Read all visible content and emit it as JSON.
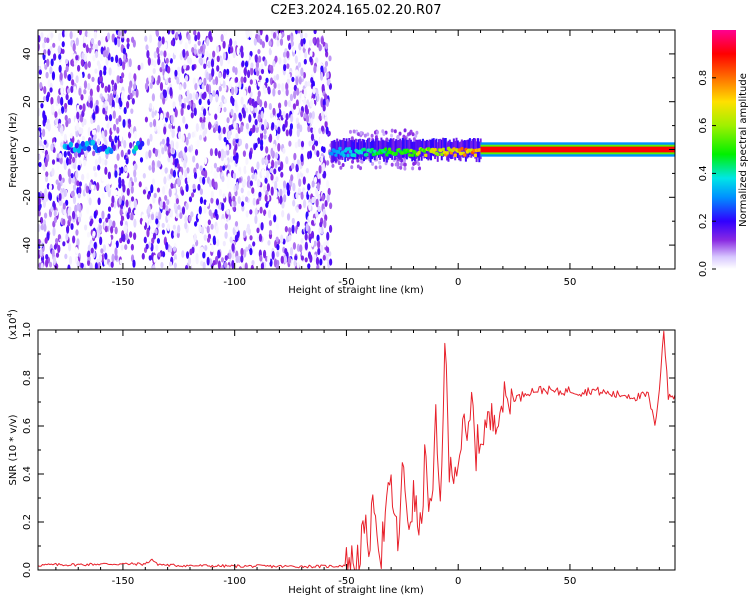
{
  "title": "C2E3.2024.165.02.20.R07",
  "chart_data": [
    {
      "type": "heatmap",
      "xlabel": "Height of straight line (km)",
      "ylabel": "Frequency (Hz)",
      "xlim": [
        -188,
        97
      ],
      "ylim": [
        -50,
        50
      ],
      "xticks": [
        -150,
        -100,
        -50,
        0,
        50
      ],
      "xtick_labels": [
        "-150",
        "-100",
        "-50",
        "0",
        "50"
      ],
      "yticks": [
        -40,
        -20,
        0,
        20,
        40
      ],
      "ytick_labels": [
        "-40",
        "-20",
        "0",
        "20",
        "40"
      ],
      "grid": false,
      "colorbar": {
        "label": "Normalized spectral amplitude",
        "range": [
          0,
          1
        ],
        "ticks": [
          0.0,
          0.2,
          0.4,
          0.6,
          0.8
        ],
        "tick_labels": [
          "0.0",
          "0.2",
          "0.4",
          "0.6",
          "0.8"
        ],
        "colormap": "rainbow (white-violet-blue-cyan-green-yellow-orange-red-magenta)"
      },
      "regions": [
        {
          "x_range": [
            -188,
            -57
          ],
          "description": "broadband noise across all frequencies, amplitude about 0.0-0.2"
        },
        {
          "x_range": [
            -144,
            -140
          ],
          "description": "low-noise gap"
        },
        {
          "x_range": [
            -176,
            -155
          ],
          "frequency": 1,
          "amplitude": 0.3
        },
        {
          "x_range": [
            -145,
            -141
          ],
          "frequency": 1,
          "amplitude": 0.35
        },
        {
          "x_range": [
            -57,
            10
          ],
          "frequency": 0,
          "amplitude_range": [
            0.3,
            0.85
          ],
          "description": "narrow spectral line, strengthening with height"
        },
        {
          "x_range": [
            10,
            97
          ],
          "frequency": 0,
          "amplitude": 0.9,
          "description": "stable strong line"
        }
      ]
    },
    {
      "type": "line",
      "xlabel": "Height of straight line (km)",
      "ylabel": "SNR (10 * v/v)",
      "y_multiplier_label": "(x10",
      "y_multiplier_exp": "4",
      "y_multiplier_close": ")",
      "xlim": [
        -188,
        97
      ],
      "ylim": [
        0,
        1.0
      ],
      "xticks": [
        -150,
        -100,
        -50,
        0,
        50
      ],
      "xtick_labels": [
        "-150",
        "-100",
        "-50",
        "0",
        "50"
      ],
      "yticks": [
        0.0,
        0.2,
        0.4,
        0.6,
        0.8,
        1.0
      ],
      "ytick_labels": [
        "0.0",
        "0.2",
        "0.4",
        "0.6",
        "0.8",
        "1.0"
      ],
      "grid": false,
      "series": [
        {
          "color": "#e8212b",
          "x": [
            -188,
            -180,
            -170,
            -160,
            -150,
            -140,
            -137,
            -135,
            -130,
            -120,
            -110,
            -100,
            -90,
            -80,
            -70,
            -60,
            -55,
            -50,
            -47,
            -45,
            -42,
            -40,
            -37,
            -35,
            -32,
            -30,
            -27,
            -25,
            -22,
            -20,
            -17,
            -15,
            -12,
            -10,
            -8,
            -6,
            -4,
            -2,
            0,
            2,
            4,
            6,
            8,
            10,
            12,
            15,
            18,
            20,
            22,
            25,
            28,
            30,
            35,
            40,
            45,
            50,
            55,
            60,
            65,
            70,
            75,
            80,
            85,
            88,
            90,
            92,
            94,
            97
          ],
          "y": [
            0.02,
            0.022,
            0.022,
            0.025,
            0.025,
            0.025,
            0.045,
            0.025,
            0.02,
            0.018,
            0.017,
            0.016,
            0.016,
            0.015,
            0.015,
            0.015,
            0.016,
            0.02,
            0.035,
            0.05,
            0.15,
            0.12,
            0.3,
            0.05,
            0.25,
            0.35,
            0.1,
            0.4,
            0.2,
            0.3,
            0.15,
            0.45,
            0.22,
            0.6,
            0.25,
            0.96,
            0.4,
            0.45,
            0.45,
            0.6,
            0.5,
            0.7,
            0.5,
            0.55,
            0.6,
            0.62,
            0.68,
            0.7,
            0.7,
            0.72,
            0.72,
            0.74,
            0.75,
            0.75,
            0.74,
            0.75,
            0.74,
            0.75,
            0.74,
            0.73,
            0.73,
            0.72,
            0.73,
            0.6,
            0.76,
            1.0,
            0.72,
            0.73
          ]
        }
      ]
    }
  ],
  "colors": {
    "series": "#e8212b",
    "axes": "#000000"
  }
}
